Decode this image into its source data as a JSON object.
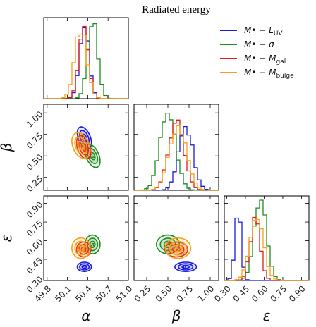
{
  "title": "Radiated energy",
  "chart_data": {
    "type": "corner",
    "title": "Radiated energy",
    "parameters": [
      {
        "symbol": "α",
        "range": [
          49.75,
          51.0
        ],
        "ticks": [
          "49.8",
          "50.1",
          "50.4",
          "50.7",
          "51.0"
        ],
        "tick_values": [
          49.8,
          50.1,
          50.4,
          50.7,
          51.0
        ]
      },
      {
        "symbol": "β",
        "range": [
          0.1,
          1.1
        ],
        "ticks": [
          "0.25",
          "0.50",
          "0.75",
          "1.00"
        ],
        "tick_values": [
          0.25,
          0.5,
          0.75,
          1.0
        ]
      },
      {
        "symbol": "ε",
        "range": [
          0.28,
          0.96
        ],
        "ticks": [
          "0.30",
          "0.45",
          "0.60",
          "0.75",
          "0.90"
        ],
        "tick_values": [
          0.3,
          0.45,
          0.6,
          0.75,
          0.9
        ]
      }
    ],
    "series": [
      {
        "name": "M• − L_UV",
        "label_main": "M",
        "label_sub": "UV",
        "label_rel": "L",
        "color": "#1a1adf",
        "mean": [
          50.35,
          0.71,
          0.39
        ],
        "sd": [
          0.07,
          0.085,
          0.025
        ],
        "corr_ab": -0.45,
        "hist_scale": [
          0.92,
          0.78,
          0.9
        ]
      },
      {
        "name": "M• − σ",
        "label_main": "M",
        "label_sub": "",
        "label_rel": "σ",
        "color": "#1f8a1f",
        "mean": [
          50.47,
          0.5,
          0.57
        ],
        "sd": [
          0.075,
          0.09,
          0.05
        ],
        "corr_ab": -0.45,
        "hist_scale": [
          1.0,
          1.0,
          1.0
        ]
      },
      {
        "name": "M• − M_gal",
        "label_main": "M",
        "label_sub": "gal",
        "label_rel": "M",
        "color": "#e41a1a",
        "mean": [
          50.34,
          0.6,
          0.53
        ],
        "sd": [
          0.07,
          0.09,
          0.04
        ],
        "corr_ab": -0.4,
        "hist_scale": [
          0.96,
          0.86,
          0.82
        ]
      },
      {
        "name": "M• − M_bulge",
        "label_main": "M",
        "label_sub": "bulge",
        "label_rel": "M",
        "color": "#f5a316",
        "mean": [
          50.3,
          0.62,
          0.54
        ],
        "sd": [
          0.09,
          0.1,
          0.055
        ],
        "corr_ab": -0.35,
        "hist_scale": [
          0.9,
          0.8,
          0.76
        ]
      }
    ],
    "contour_levels_sigma": [
      0.5,
      1.0,
      1.5
    ],
    "legend_position": "top-right",
    "grid": false
  }
}
